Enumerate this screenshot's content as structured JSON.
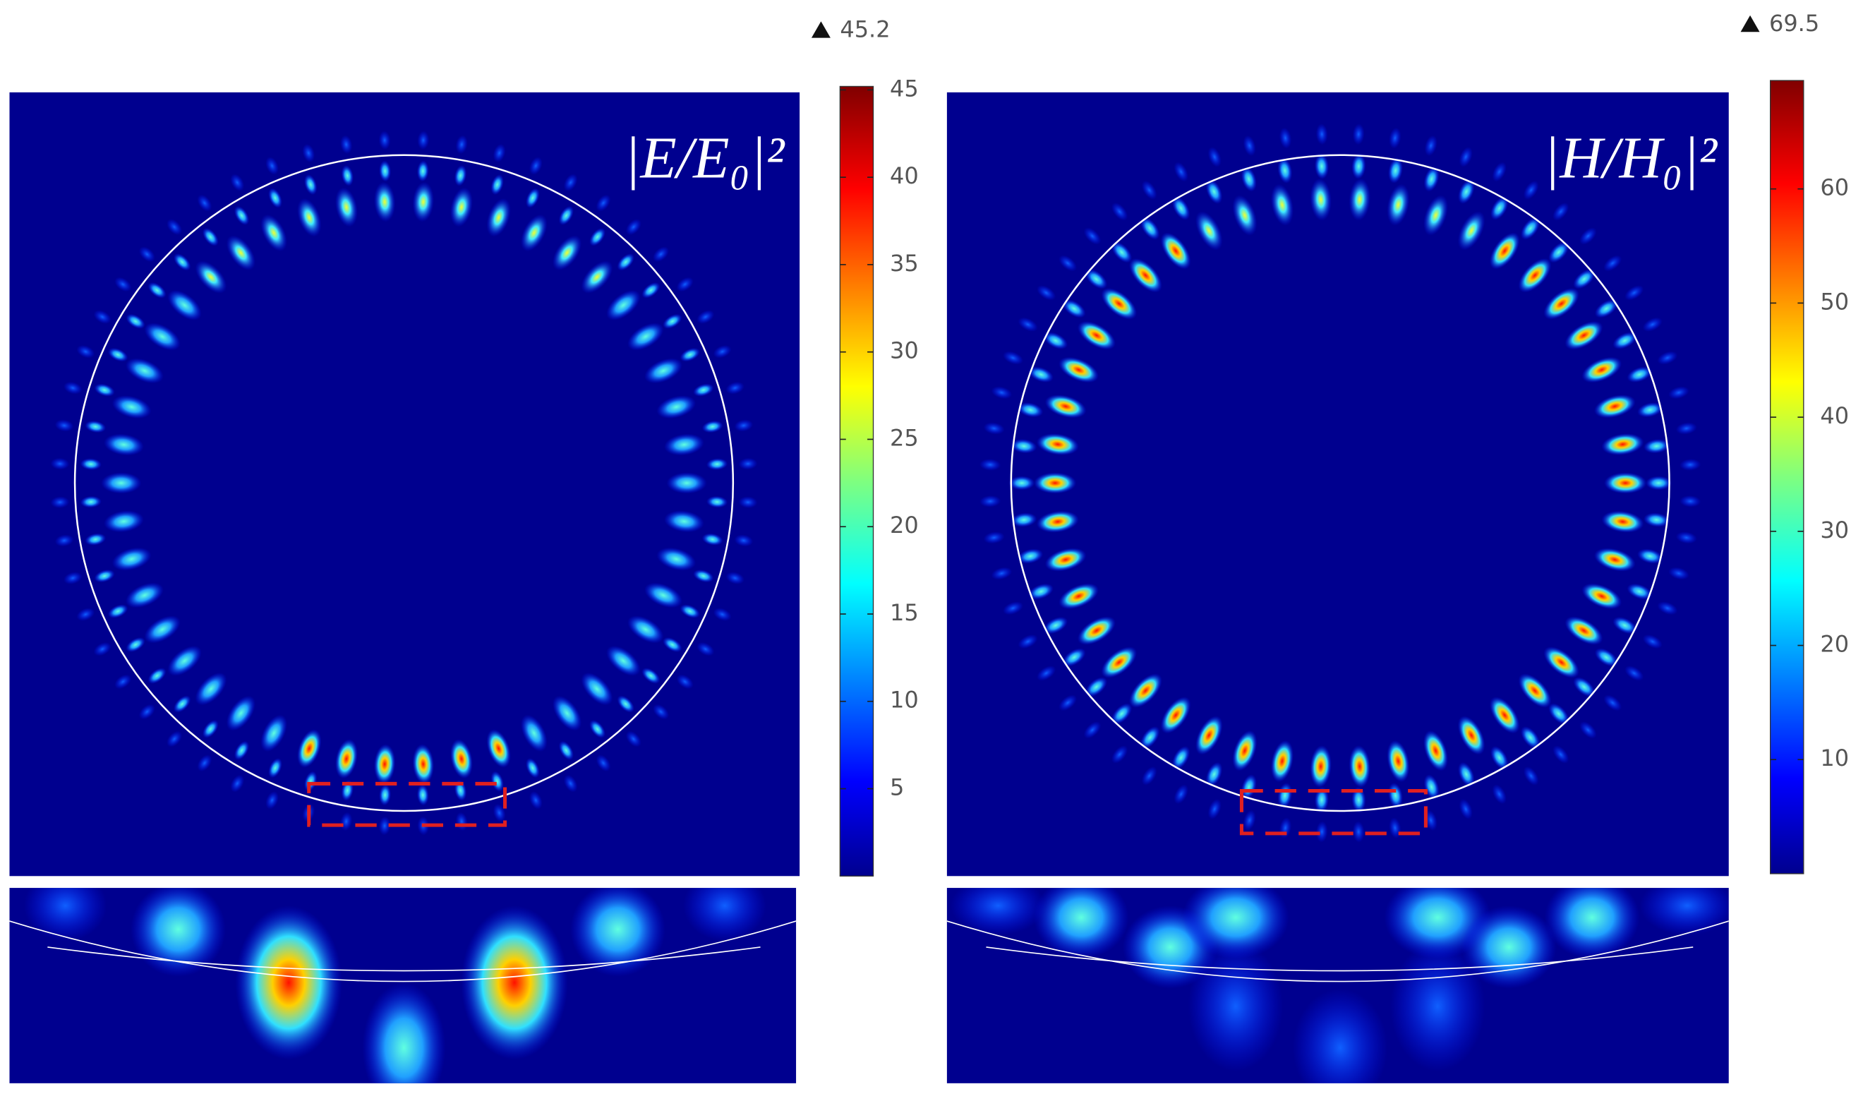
{
  "chart_data": [
    {
      "type": "colormap",
      "title": "|E/E₀|²",
      "max": 45.2,
      "ylim": [
        0,
        45.2
      ],
      "yticks": [
        5,
        10,
        15,
        20,
        25,
        30,
        35,
        40,
        45
      ]
    },
    {
      "type": "colormap",
      "title": "|H/H₀|²",
      "max": 69.5,
      "ylim": [
        0,
        69.5
      ],
      "yticks": [
        10,
        20,
        30,
        40,
        50,
        60
      ]
    }
  ]
}
